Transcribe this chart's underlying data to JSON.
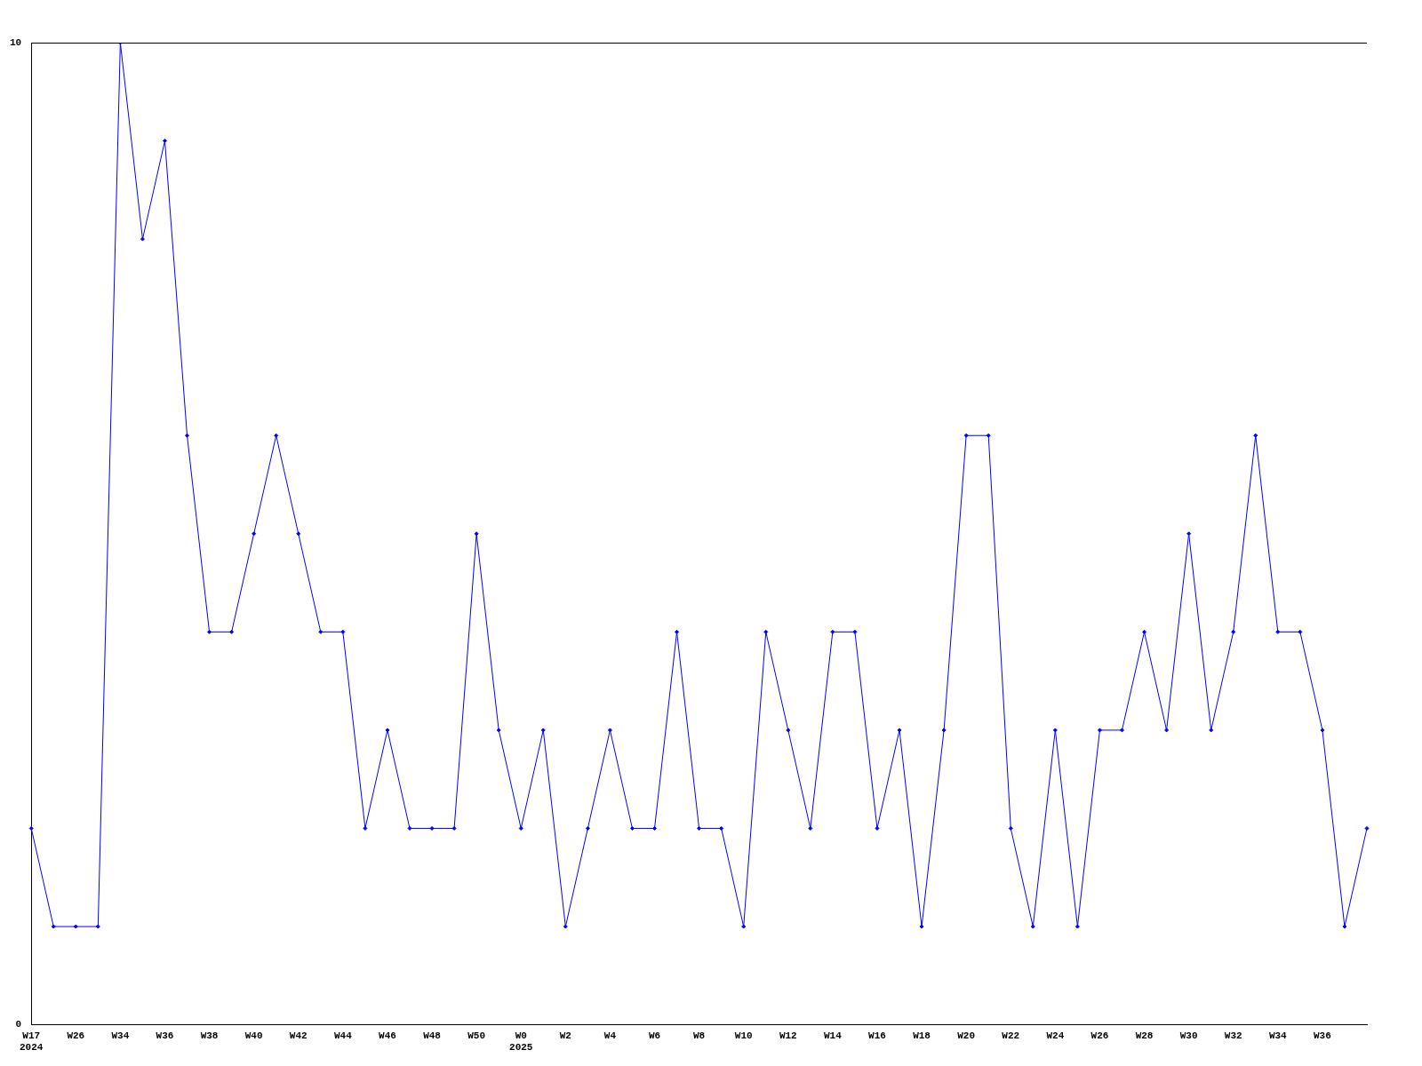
{
  "chart_data": {
    "type": "line",
    "categories": [
      "W17\n2024",
      null,
      "W26",
      null,
      "W34",
      null,
      "W36",
      null,
      "W38",
      null,
      "W40",
      null,
      "W42",
      null,
      "W44",
      null,
      "W46",
      null,
      "W48",
      null,
      "W50",
      null,
      "W0\n2025",
      null,
      "W2",
      null,
      "W4",
      null,
      "W6",
      null,
      "W8",
      null,
      "W10",
      null,
      "W12",
      null,
      "W14",
      null,
      "W16",
      null,
      "W18",
      null,
      "W20",
      null,
      "W22",
      null,
      "W24",
      null,
      "W26",
      null,
      "W28",
      null,
      "W30",
      null,
      "W32",
      null,
      "W34",
      null,
      "W36",
      null,
      null
    ],
    "series": [
      {
        "color": "#0000ff",
        "values": [
          2,
          1,
          1,
          1,
          10,
          8,
          9,
          6,
          4,
          4,
          5,
          6,
          5,
          4,
          4,
          2,
          3,
          2,
          2,
          2,
          5,
          3,
          2,
          3,
          1,
          2,
          3,
          2,
          2,
          4,
          2,
          2,
          1,
          4,
          3,
          2,
          4,
          4,
          2,
          3,
          1,
          3,
          6,
          6,
          2,
          1,
          3,
          1,
          3,
          3,
          4,
          3,
          5,
          3,
          4,
          6,
          4,
          4,
          3,
          1,
          2
        ]
      }
    ],
    "ylim": [
      0,
      10
    ],
    "yticks": [
      0,
      10
    ],
    "grid": false,
    "legend": false,
    "marker": "diamond",
    "line_style": "solid"
  }
}
